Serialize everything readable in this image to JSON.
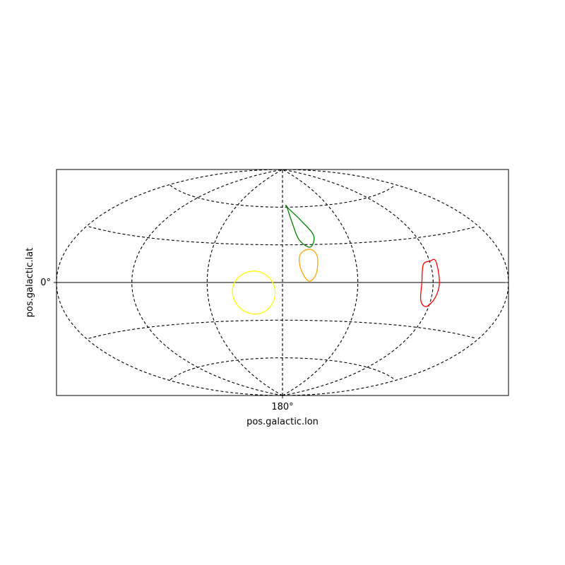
{
  "chart_data": {
    "type": "sky-map",
    "projection": "aitoff",
    "center_lon": 180,
    "xlabel": "pos.galactic.lon",
    "ylabel": "pos.galactic.lat",
    "x_ticks": [
      {
        "value": 180,
        "label": "180°"
      }
    ],
    "y_ticks": [
      {
        "value": 0,
        "label": "0°"
      }
    ],
    "graticule": {
      "style": "dashed",
      "color": "#000000",
      "meridians": [
        60,
        120,
        180,
        240,
        300
      ],
      "parallels": [
        -60,
        -30,
        0,
        30,
        60
      ],
      "lat_range": [
        -90,
        90
      ],
      "lon_range": [
        0,
        360
      ]
    },
    "regions": [
      {
        "color": "#ff0000",
        "center": [
          300,
          4
        ],
        "points": [
          [
            300,
            14
          ],
          [
            294,
            12
          ],
          [
            291,
            0
          ],
          [
            292,
            -12
          ],
          [
            298,
            -16
          ],
          [
            303,
            -10
          ],
          [
            305,
            0
          ],
          [
            305,
            14
          ]
        ]
      },
      {
        "color": "#008000",
        "center": [
          197,
          42
        ],
        "points": [
          [
            186,
            60
          ],
          [
            190,
            48
          ],
          [
            195,
            34
          ],
          [
            204,
            28
          ],
          [
            209,
            37
          ],
          [
            200,
            49
          ],
          [
            186,
            60
          ]
        ]
      },
      {
        "color": "#ffa500",
        "center": [
          201,
          14
        ],
        "points": [
          [
            194,
            20
          ],
          [
            195,
            10
          ],
          [
            201,
            1
          ],
          [
            207,
            7
          ],
          [
            209,
            20
          ],
          [
            205,
            26
          ],
          [
            198,
            25
          ]
        ]
      },
      {
        "color": "#ffff00",
        "center": [
          157,
          -8
        ],
        "radius": 17
      }
    ]
  }
}
